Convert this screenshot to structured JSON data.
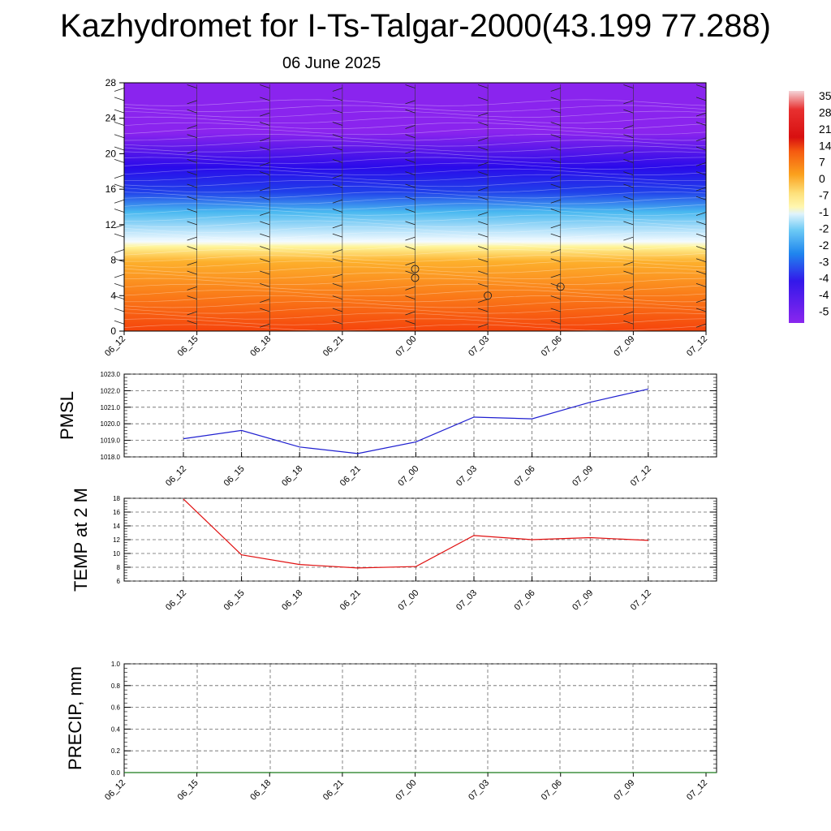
{
  "title": "Kazhydromet for I-Ts-Talgar-2000(43.199 77.288)",
  "subtitle": "06 June 2025",
  "colors": {
    "pmsl_line": "#1f1fd0",
    "temp_line": "#e01010",
    "precip_line": "#1a7a1a",
    "grid": "#666666"
  },
  "chart_data": [
    {
      "type": "heatmap",
      "name": "cross-section",
      "x_ticks": [
        "06_12",
        "06_15",
        "06_18",
        "06_21",
        "07_00",
        "07_03",
        "07_06",
        "07_09",
        "07_12"
      ],
      "y_ticks": [
        0,
        4,
        8,
        12,
        16,
        20,
        24,
        28
      ],
      "ylim": [
        0,
        28
      ],
      "colorbar_labels": [
        "35",
        "28",
        "21",
        "14",
        "7",
        "0",
        "-7",
        "-1",
        "-2",
        "-2",
        "-3",
        "-4",
        "-4",
        "-5"
      ],
      "wind_barbs": true,
      "calm_markers": [
        {
          "time": "07_00",
          "level": 7
        },
        {
          "time": "07_00",
          "level": 6
        },
        {
          "time": "07_03",
          "level": 4
        },
        {
          "time": "07_06",
          "level": 5
        }
      ]
    },
    {
      "type": "line",
      "ylabel": "PMSL",
      "categories": [
        "06_12",
        "06_15",
        "06_18",
        "06_21",
        "07_00",
        "07_03",
        "07_06",
        "07_09",
        "07_12"
      ],
      "series": [
        {
          "values": [
            1019.1,
            1019.6,
            1018.6,
            1018.2,
            1018.9,
            1020.4,
            1020.3,
            1021.3,
            1022.1
          ]
        }
      ],
      "y_ticks": [
        "1018.0",
        "1019.0",
        "1020.0",
        "1021.0",
        "1022.0",
        "1023.0"
      ],
      "ylim": [
        1018,
        1023
      ],
      "grid": true
    },
    {
      "type": "line",
      "ylabel": "TEMP at 2 M",
      "categories": [
        "06_12",
        "06_15",
        "06_18",
        "06_21",
        "07_00",
        "07_03",
        "07_06",
        "07_09",
        "07_12"
      ],
      "series": [
        {
          "values": [
            17.9,
            9.8,
            8.4,
            7.9,
            8.1,
            12.6,
            12.0,
            12.3,
            11.9
          ]
        }
      ],
      "y_ticks": [
        "6",
        "8",
        "10",
        "12",
        "14",
        "16",
        "18"
      ],
      "ylim": [
        6,
        18
      ],
      "grid": true
    },
    {
      "type": "line",
      "ylabel": "PRECIP, mm",
      "x_ticks": [
        "06_12",
        "06_15",
        "06_18",
        "06_21",
        "07_00",
        "07_03",
        "07_06",
        "07_09",
        "07_12"
      ],
      "series": [
        {
          "values": [
            0,
            0,
            0,
            0,
            0,
            0,
            0,
            0,
            0
          ]
        }
      ],
      "y_ticks": [
        "0.0",
        "0.2",
        "0.4",
        "0.6",
        "0.8",
        "1.0"
      ],
      "ylim": [
        0,
        1
      ],
      "grid": true
    }
  ]
}
